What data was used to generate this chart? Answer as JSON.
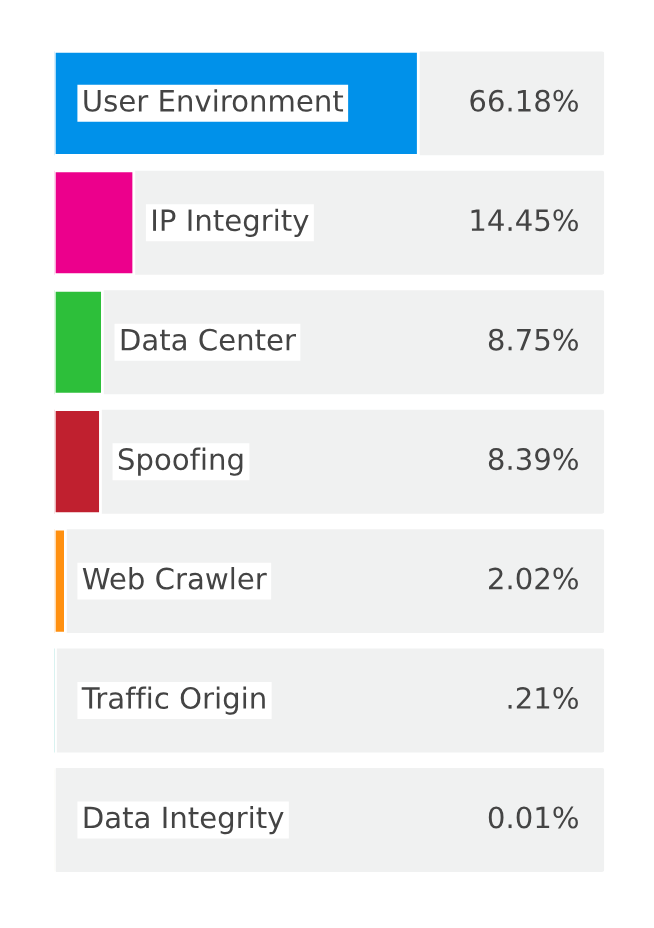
{
  "chart_data": {
    "type": "bar",
    "orientation": "horizontal",
    "categories": [
      "User Environment",
      "IP Integrity",
      "Data Center",
      "Spoofing",
      "Web Crawler",
      "Traffic Origin",
      "Data Integrity"
    ],
    "values": [
      66.18,
      14.45,
      8.75,
      8.39,
      2.02,
      0.21,
      0.01
    ],
    "colors": [
      "#0091ea",
      "#ec008c",
      "#2dbf3a",
      "#c0202f",
      "#ff9010",
      "#00a99d",
      "#ffc800"
    ],
    "value_labels": [
      "66.18%",
      "14.45%",
      "8.75%",
      "8.39%",
      "2.02%",
      ".21%",
      "0.01%"
    ],
    "xlim": [
      0,
      100
    ]
  }
}
